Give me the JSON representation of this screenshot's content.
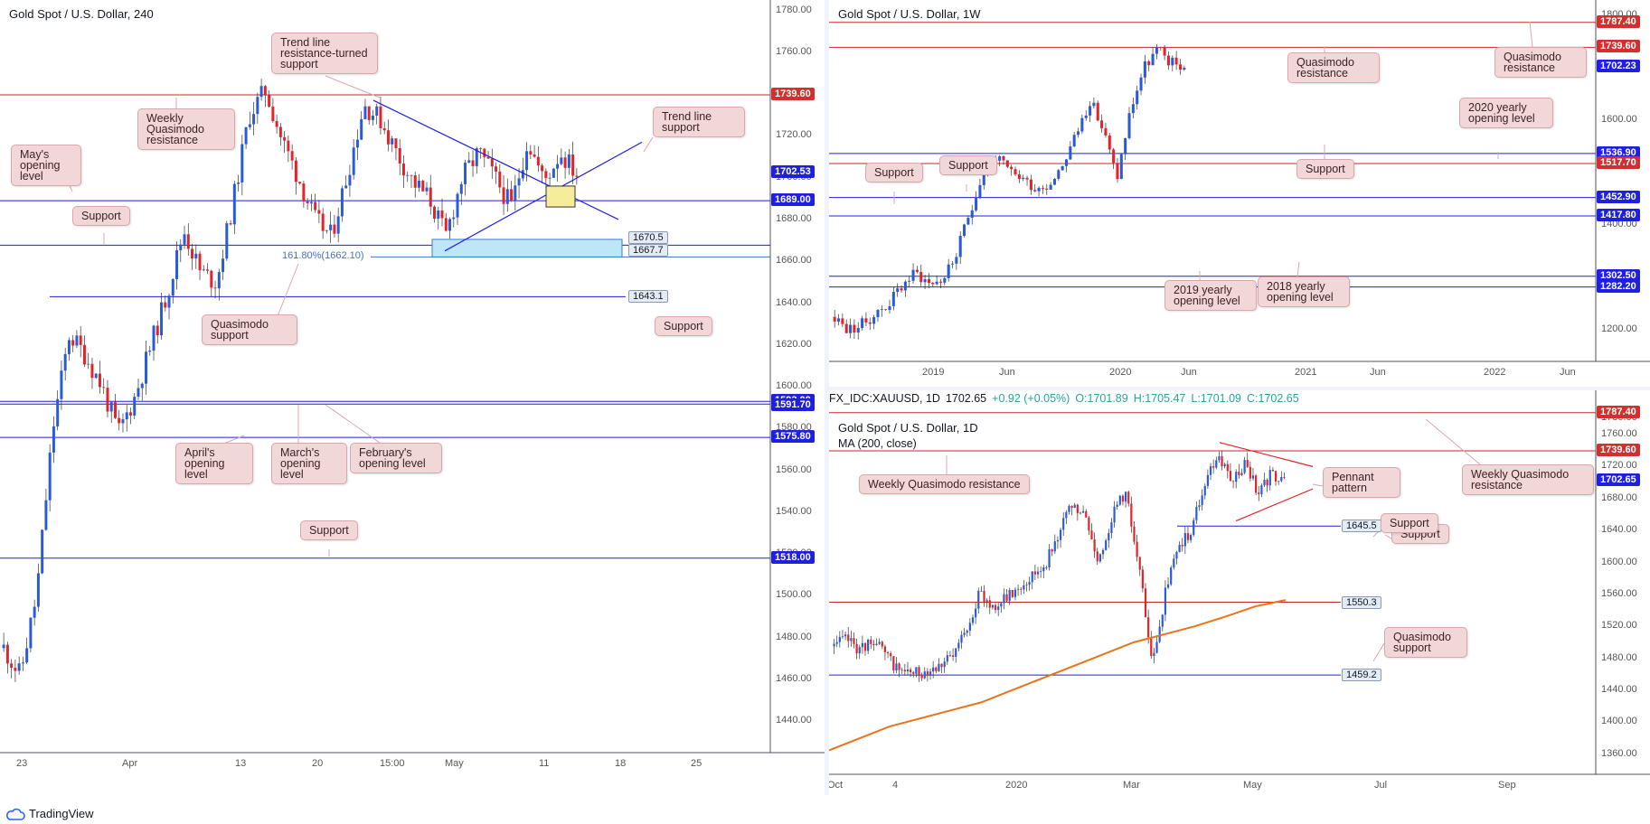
{
  "panels": {
    "h4": {
      "title": "Gold Spot / U.S. Dollar, 240",
      "price_labels": [
        {
          "value": "1739.60",
          "style": "red"
        },
        {
          "value": "1702.53",
          "style": "blue"
        },
        {
          "value": "1689.00",
          "style": "blue"
        },
        {
          "value": "1593.00",
          "style": "blue"
        },
        {
          "value": "1591.70",
          "style": "blue"
        },
        {
          "value": "1575.80",
          "style": "blue"
        },
        {
          "value": "1518.00",
          "style": "blue"
        }
      ],
      "level_boxes": [
        "1670.5",
        "1667.7",
        "1643.1"
      ],
      "fib_label": "161.80%(1662.10)",
      "callouts": [
        "Trend line resistance-turned support",
        "Weekly Quasimodo resistance",
        "Trend line support",
        "May's opening level",
        "Support",
        "Quasimodo support",
        "Support",
        "April's opening level",
        "March's opening level",
        "February's opening level",
        "Support"
      ]
    },
    "w1": {
      "title": "Gold Spot / U.S. Dollar, 1W",
      "price_labels": [
        {
          "value": "1787.40",
          "style": "red"
        },
        {
          "value": "1739.60",
          "style": "red"
        },
        {
          "value": "1702.23",
          "style": "blue"
        },
        {
          "value": "1536.90",
          "style": "blue"
        },
        {
          "value": "1517.70",
          "style": "red"
        },
        {
          "value": "1452.90",
          "style": "blue"
        },
        {
          "value": "1417.80",
          "style": "blue"
        },
        {
          "value": "1302.50",
          "style": "blue"
        },
        {
          "value": "1282.20",
          "style": "blue"
        }
      ],
      "callouts": [
        "Quasimodo resistance",
        "Quasimodo resistance",
        "2020 yearly opening level",
        "Support",
        "Support",
        "Support",
        "2019 yearly opening level",
        "2018 yearly opening level"
      ]
    },
    "d1": {
      "symbol_line": {
        "symbol": "FX_IDC:XAUUSD, 1D",
        "last": "1702.65",
        "change": "+0.92 (+0.05%)",
        "o": "O:1701.89",
        "h": "H:1705.47",
        "l": "L:1701.09",
        "c": "C:1702.65"
      },
      "title": "Gold Spot / U.S. Dollar, 1D",
      "ma_label": "MA (200, close)",
      "price_labels": [
        {
          "value": "1787.40",
          "style": "red"
        },
        {
          "value": "1739.60",
          "style": "red"
        },
        {
          "value": "1702.65",
          "style": "blue"
        }
      ],
      "level_boxes": [
        "1645.5",
        "1550.3",
        "1459.2"
      ],
      "callouts": [
        "Weekly Quasimodo resistance",
        "Pennant pattern",
        "Weekly Quasimodo resistance",
        "Support",
        "Support",
        "Quasimodo support"
      ]
    }
  },
  "chart_data": [
    {
      "type": "candlestick",
      "title": "Gold Spot / U.S. Dollar, 240",
      "x_ticks": [
        "23",
        "Apr",
        "13",
        "20",
        "15:00",
        "May",
        "11",
        "18",
        "25"
      ],
      "y_ticks": [
        1780,
        1760,
        1740,
        1720,
        1700,
        1680,
        1660,
        1640,
        1620,
        1600,
        1580,
        1560,
        1540,
        1520,
        1500,
        1480,
        1460,
        1440
      ],
      "ylim": [
        1425,
        1785
      ],
      "horizontal_levels": [
        1739.6,
        1689.0,
        1670.5,
        1667.7,
        1662.1,
        1643.1,
        1593.0,
        1591.7,
        1575.8,
        1518.0
      ],
      "last_price": 1702.53,
      "close_path": [
        1475,
        1462,
        1500,
        1580,
        1625,
        1615,
        1600,
        1578,
        1595,
        1620,
        1645,
        1675,
        1655,
        1650,
        1688,
        1730,
        1742,
        1718,
        1700,
        1680,
        1672,
        1702,
        1735,
        1728,
        1712,
        1698,
        1690,
        1672,
        1700,
        1712,
        1700,
        1686,
        1718,
        1698,
        1712,
        1702
      ]
    },
    {
      "type": "candlestick",
      "title": "Gold Spot / U.S. Dollar, 1W",
      "x_ticks": [
        "2019",
        "Jun",
        "2020",
        "Jun",
        "2021",
        "Jun",
        "2022",
        "Jun"
      ],
      "y_ticks": [
        1800,
        1600,
        1400,
        1200
      ],
      "ylim": [
        1140,
        1830
      ],
      "horizontal_levels": [
        1787.4,
        1739.6,
        1536.9,
        1517.7,
        1452.9,
        1417.8,
        1302.5,
        1282.2
      ],
      "last_price": 1702.23,
      "close_path": [
        1225,
        1200,
        1210,
        1230,
        1250,
        1285,
        1310,
        1290,
        1295,
        1340,
        1420,
        1500,
        1530,
        1500,
        1490,
        1470,
        1480,
        1520,
        1575,
        1640,
        1580,
        1490,
        1620,
        1700,
        1735,
        1710,
        1702
      ]
    },
    {
      "type": "candlestick",
      "title": "Gold Spot / U.S. Dollar, 1D",
      "x_ticks": [
        "Oct",
        "4",
        "2020",
        "Mar",
        "May",
        "Jul",
        "Sep"
      ],
      "y_ticks": [
        1780,
        1760,
        1720,
        1680,
        1640,
        1600,
        1560,
        1520,
        1480,
        1440,
        1400,
        1360
      ],
      "ylim": [
        1335,
        1795
      ],
      "horizontal_levels": [
        1787.4,
        1739.6,
        1645.5,
        1550.3,
        1459.2
      ],
      "last_price": 1702.65,
      "moving_average": {
        "name": "MA (200, close)",
        "period": 200
      },
      "close_path": [
        1495,
        1505,
        1490,
        1505,
        1480,
        1465,
        1460,
        1465,
        1475,
        1480,
        1520,
        1560,
        1545,
        1555,
        1570,
        1585,
        1600,
        1640,
        1670,
        1655,
        1600,
        1660,
        1690,
        1600,
        1470,
        1560,
        1620,
        1640,
        1700,
        1735,
        1700,
        1725,
        1690,
        1710,
        1702
      ],
      "ma_path": [
        1365,
        1380,
        1395,
        1405,
        1415,
        1425,
        1440,
        1455,
        1470,
        1485,
        1500,
        1510,
        1520,
        1532,
        1545,
        1553
      ]
    }
  ]
}
